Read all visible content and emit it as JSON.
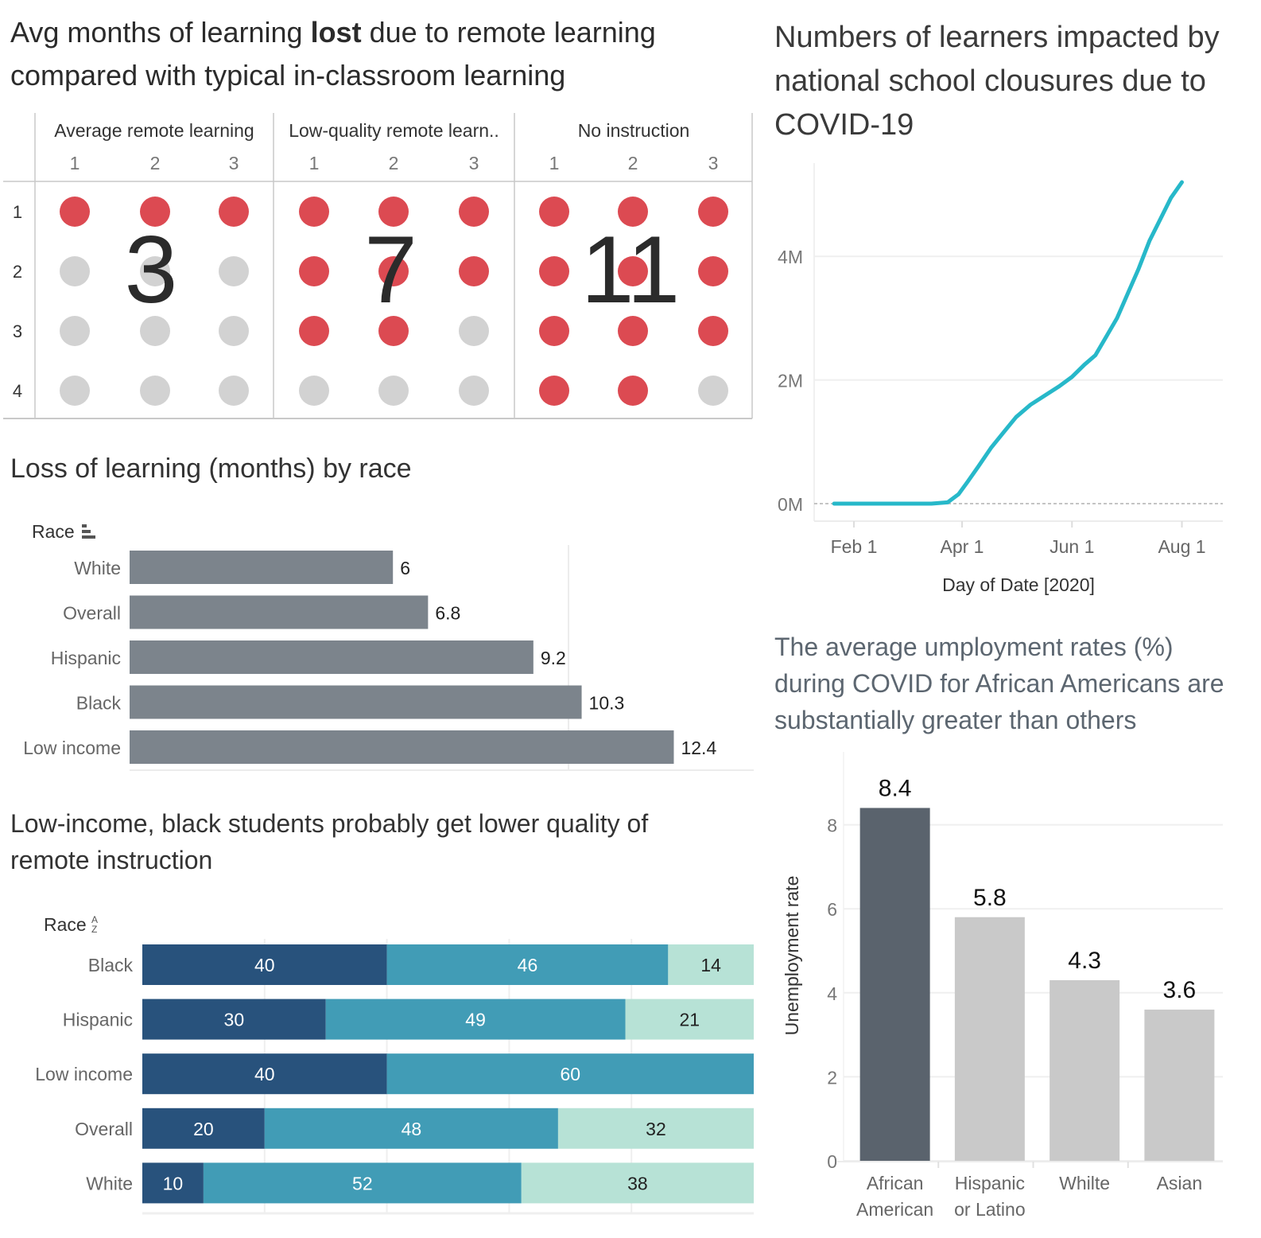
{
  "colors": {
    "red": "#dc4a52",
    "dot_gray": "#d2d2d2",
    "bar_gray": "#7c848c",
    "navy": "#28527c",
    "teal": "#419cb6",
    "mint": "#b7e2d6",
    "line": "#27b8c9",
    "dark_bar": "#5a636d",
    "light_bar": "#c9c9c9"
  },
  "chart_data": [
    {
      "id": "dot-matrix",
      "type": "heatmap",
      "title_parts": [
        "Avg months of learning ",
        "lost",
        " due to remote learning compared with typical in-classroom learning"
      ],
      "panels": [
        {
          "label": "Average remote learning",
          "total": "3",
          "filled": 3
        },
        {
          "label": "Low-quality remote learn..",
          "total": "7",
          "filled": 7
        },
        {
          "label": "No instruction",
          "total": "11",
          "filled": 11
        }
      ],
      "columns": [
        "1",
        "2",
        "3"
      ],
      "rows": [
        "1",
        "2",
        "3",
        "4"
      ],
      "grid": [
        [
          [
            1,
            1,
            1
          ],
          [
            0,
            0,
            0
          ],
          [
            0,
            0,
            0
          ],
          [
            0,
            0,
            0
          ]
        ],
        [
          [
            1,
            1,
            1
          ],
          [
            1,
            1,
            1
          ],
          [
            1,
            1,
            0
          ],
          [
            0,
            0,
            0
          ]
        ],
        [
          [
            1,
            1,
            1
          ],
          [
            1,
            1,
            1
          ],
          [
            1,
            1,
            1
          ],
          [
            1,
            1,
            0
          ]
        ]
      ]
    },
    {
      "id": "loss-by-race",
      "type": "bar",
      "orientation": "horizontal",
      "title": "Loss of learning (months) by race",
      "axis_label": "Race",
      "categories": [
        "White",
        "Overall",
        "Hispanic",
        "Black",
        "Low income"
      ],
      "values": [
        6,
        6.8,
        9.2,
        10.3,
        12.4
      ],
      "value_labels": [
        "6",
        "6.8",
        "9.2",
        "10.3",
        "12.4"
      ],
      "xlim": [
        0,
        13.8
      ],
      "gridlines": [
        10
      ]
    },
    {
      "id": "remote-quality",
      "type": "bar",
      "orientation": "horizontal",
      "stacked": true,
      "title": "Low-income, black students probably get lower quality of remote instruction",
      "axis_label": "Race",
      "categories": [
        "Black",
        "Hispanic",
        "Low income",
        "Overall",
        "White"
      ],
      "series": [
        {
          "name": "segment-1",
          "values": [
            40,
            30,
            40,
            20,
            10
          ],
          "labels": [
            "40",
            "30",
            "40",
            "20",
            "10"
          ]
        },
        {
          "name": "segment-2",
          "values": [
            46,
            49,
            60,
            48,
            52
          ],
          "labels": [
            "46",
            "49",
            "60",
            "48",
            "52"
          ]
        },
        {
          "name": "segment-3",
          "values": [
            14,
            21,
            0,
            32,
            38
          ],
          "labels": [
            "14",
            "21",
            "",
            "32",
            "38"
          ]
        }
      ],
      "xlim": [
        0,
        100
      ],
      "gridlines": [
        20,
        40,
        60,
        80
      ]
    },
    {
      "id": "learners-impacted",
      "type": "line",
      "title": "Numbers of learners impacted by national school clousures due to COVID-19",
      "xlabel": "Day of Date [2020]",
      "x_ticks": [
        "Feb 1",
        "Apr 1",
        "Jun 1",
        "Aug 1"
      ],
      "x_tick_days": [
        32,
        92,
        153,
        214
      ],
      "y_ticks": [
        "0M",
        "2M",
        "4M"
      ],
      "y_tick_values": [
        0,
        2,
        4
      ],
      "ylim": [
        -0.3,
        5.5
      ],
      "xlim_days": [
        22,
        232
      ],
      "points": [
        {
          "day": 21,
          "value": 0
        },
        {
          "day": 50,
          "value": 0
        },
        {
          "day": 75,
          "value": 0
        },
        {
          "day": 84,
          "value": 0.02
        },
        {
          "day": 90,
          "value": 0.15
        },
        {
          "day": 95,
          "value": 0.35
        },
        {
          "day": 101,
          "value": 0.6
        },
        {
          "day": 108,
          "value": 0.9
        },
        {
          "day": 115,
          "value": 1.15
        },
        {
          "day": 122,
          "value": 1.4
        },
        {
          "day": 130,
          "value": 1.6
        },
        {
          "day": 138,
          "value": 1.75
        },
        {
          "day": 146,
          "value": 1.9
        },
        {
          "day": 153,
          "value": 2.05
        },
        {
          "day": 160,
          "value": 2.25
        },
        {
          "day": 166,
          "value": 2.4
        },
        {
          "day": 172,
          "value": 2.7
        },
        {
          "day": 178,
          "value": 3.0
        },
        {
          "day": 184,
          "value": 3.4
        },
        {
          "day": 190,
          "value": 3.8
        },
        {
          "day": 196,
          "value": 4.25
        },
        {
          "day": 202,
          "value": 4.6
        },
        {
          "day": 208,
          "value": 4.95
        },
        {
          "day": 214,
          "value": 5.2
        }
      ]
    },
    {
      "id": "unemployment",
      "type": "bar",
      "title": "The average umployment rates (%) during COVID for African Americans are substantially greater than others",
      "ylabel": "Unemployment rate",
      "categories": [
        [
          "African",
          "American"
        ],
        [
          "Hispanic",
          "or Latino"
        ],
        [
          "Whilte"
        ],
        [
          "Asian"
        ]
      ],
      "values": [
        8.4,
        5.8,
        4.3,
        3.6
      ],
      "value_labels": [
        "8.4",
        "5.8",
        "4.3",
        "3.6"
      ],
      "highlight": [
        true,
        false,
        false,
        false
      ],
      "y_ticks": [
        "0",
        "2",
        "4",
        "6",
        "8"
      ],
      "y_tick_values": [
        0,
        2,
        4,
        6,
        8
      ],
      "ylim": [
        0,
        9.5
      ]
    }
  ]
}
